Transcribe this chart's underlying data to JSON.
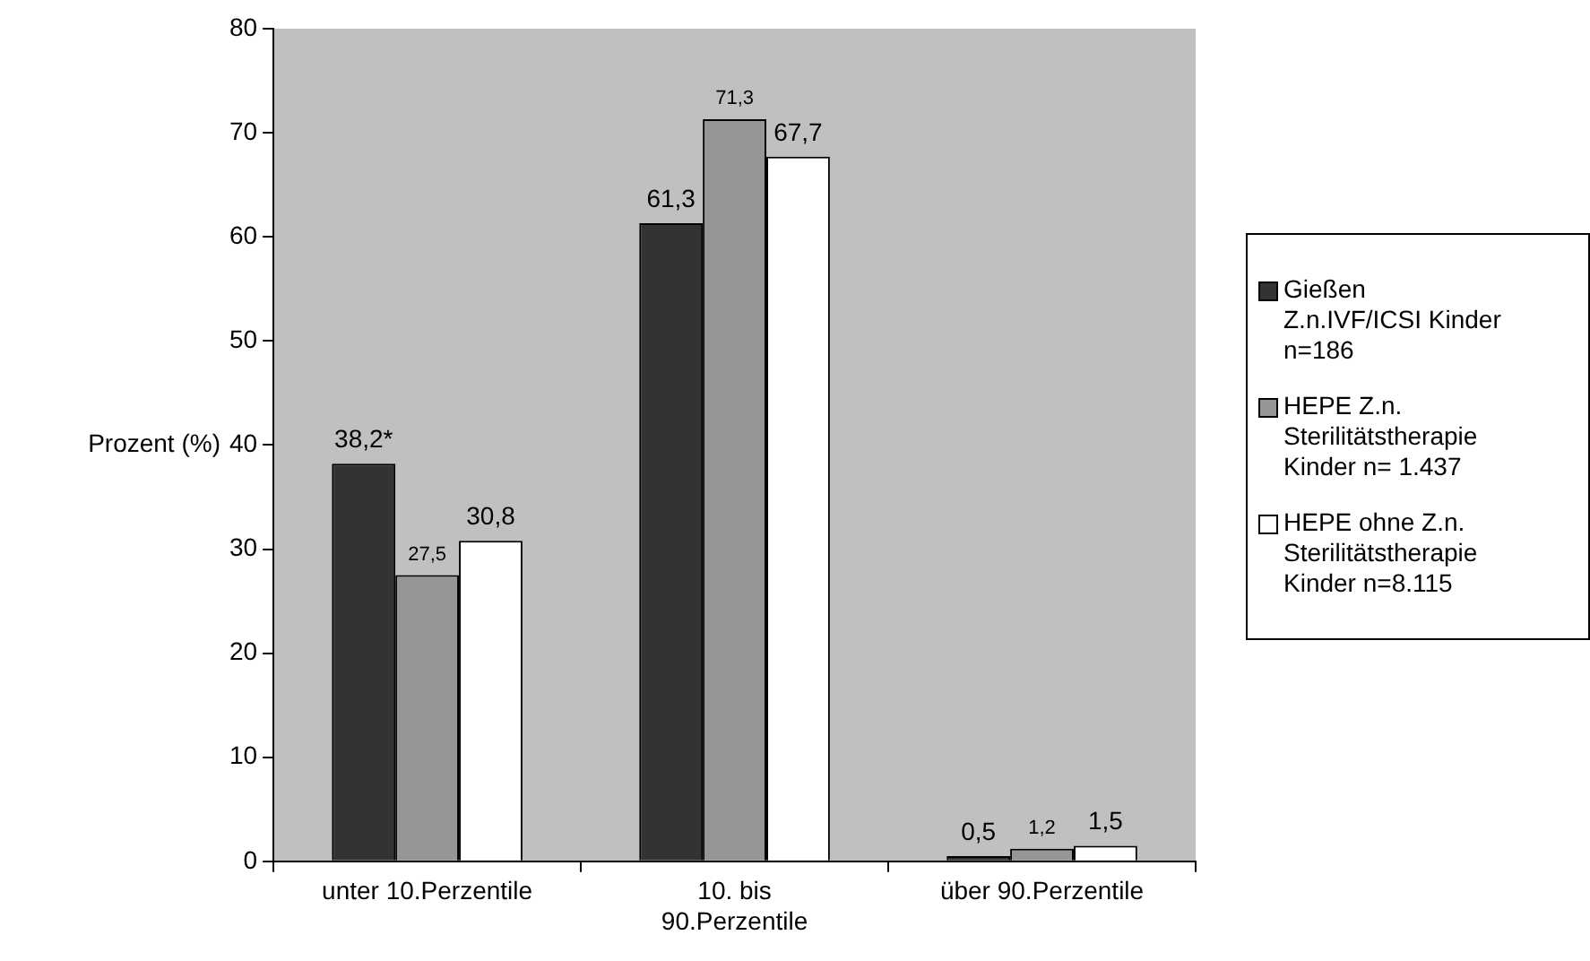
{
  "chart_data": {
    "type": "bar",
    "ylabel": "Prozent (%)",
    "categories": [
      "unter 10.Perzentile",
      "10. bis 90.Perzentile",
      "über 90.Perzentile"
    ],
    "series": [
      {
        "name": "Gießen Z.n.IVF/ICSI Kinder n=186",
        "color": "#333333",
        "values": [
          38.2,
          61.3,
          0.5
        ],
        "value_labels": [
          "38,2*",
          "61,3",
          "0,5"
        ]
      },
      {
        "name": "HEPE Z.n. Sterilitätstherapie Kinder n= 1.437",
        "color": "#969696",
        "values": [
          27.5,
          71.3,
          1.2
        ],
        "value_labels": [
          "27,5",
          "71,3",
          "1,2"
        ]
      },
      {
        "name": "HEPE ohne Z.n. Sterilitätstherapie Kinder n=8.115",
        "color": "#ffffff",
        "values": [
          30.8,
          67.7,
          1.5
        ],
        "value_labels": [
          "30,8",
          "67,7",
          "1,5"
        ]
      }
    ],
    "ylim": [
      0,
      80
    ],
    "yticks": [
      0,
      10,
      20,
      30,
      40,
      50,
      60,
      70,
      80
    ],
    "legend": "right"
  }
}
